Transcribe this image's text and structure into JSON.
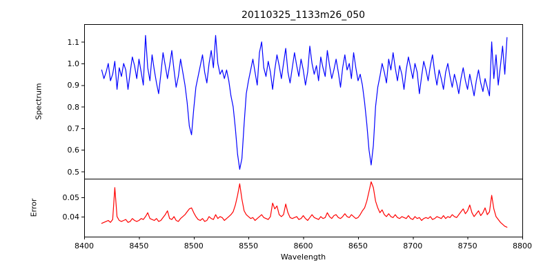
{
  "figure": {
    "background": "#ffffff",
    "axis_color": "#000000"
  },
  "chart_data": [
    {
      "type": "line",
      "name": "spectrum",
      "title": "20110325_1133m26_050",
      "ylabel": "Spectrum",
      "line_color": "#0000ff",
      "xlim": [
        8400,
        8800
      ],
      "ylim": [
        0.4665,
        1.182
      ],
      "y_ticks": [
        "1.1",
        "1.0",
        "0.9",
        "0.8",
        "0.7",
        "0.6",
        "0.5"
      ],
      "grid": false,
      "legend": "none",
      "x_start": 8416,
      "x_step": 2,
      "absorption_features": [
        {
          "wavelength": 8498,
          "depth": 0.67
        },
        {
          "wavelength": 8542,
          "depth": 0.51
        },
        {
          "wavelength": 8662,
          "depth": 0.53
        }
      ],
      "values": [
        0.97,
        0.93,
        0.96,
        1.0,
        0.92,
        0.95,
        1.01,
        0.88,
        0.98,
        0.94,
        1.0,
        0.97,
        0.88,
        0.96,
        1.03,
        0.99,
        0.93,
        1.02,
        0.96,
        0.9,
        1.13,
        0.98,
        0.92,
        1.04,
        0.97,
        0.91,
        0.86,
        0.95,
        1.05,
        0.99,
        0.93,
        0.99,
        1.06,
        0.97,
        0.89,
        0.94,
        1.02,
        0.96,
        0.9,
        0.82,
        0.71,
        0.67,
        0.79,
        0.89,
        0.94,
        0.99,
        1.04,
        0.96,
        0.91,
        1.0,
        1.06,
        0.98,
        1.13,
        1.0,
        0.95,
        0.97,
        0.93,
        0.97,
        0.92,
        0.85,
        0.8,
        0.7,
        0.58,
        0.51,
        0.56,
        0.72,
        0.86,
        0.92,
        0.97,
        1.02,
        0.96,
        0.9,
        1.05,
        1.1,
        0.98,
        0.94,
        1.01,
        0.96,
        0.88,
        0.97,
        1.04,
        0.99,
        0.93,
        1.0,
        1.07,
        0.96,
        0.91,
        0.98,
        1.05,
        0.99,
        0.94,
        1.02,
        0.97,
        0.9,
        0.96,
        1.08,
        1.0,
        0.95,
        0.99,
        0.92,
        1.03,
        0.98,
        0.94,
        1.06,
        0.99,
        0.93,
        0.97,
        1.02,
        0.96,
        0.89,
        0.98,
        1.04,
        0.97,
        1.0,
        0.93,
        1.05,
        0.98,
        0.92,
        0.95,
        0.9,
        0.82,
        0.72,
        0.6,
        0.53,
        0.62,
        0.8,
        0.89,
        0.94,
        1.0,
        0.96,
        0.91,
        1.02,
        0.97,
        1.05,
        0.98,
        0.92,
        0.99,
        0.95,
        0.88,
        0.97,
        1.03,
        0.98,
        0.93,
        1.0,
        0.96,
        0.86,
        0.94,
        1.01,
        0.97,
        0.92,
        0.99,
        1.04,
        0.96,
        0.9,
        0.97,
        0.93,
        0.88,
        0.96,
        1.0,
        0.94,
        0.89,
        0.95,
        0.91,
        0.86,
        0.93,
        0.98,
        0.92,
        0.88,
        0.95,
        0.9,
        0.85,
        0.92,
        0.97,
        0.91,
        0.87,
        0.93,
        0.89,
        0.85,
        1.1,
        0.93,
        1.04,
        0.9,
        0.99,
        1.08,
        0.95,
        1.12
      ]
    },
    {
      "type": "line",
      "name": "error",
      "xlabel": "Wavelength",
      "ylabel": "Error",
      "line_color": "#ff0000",
      "xlim": [
        8400,
        8800
      ],
      "ylim": [
        0.0296,
        0.0596
      ],
      "x_ticks": [
        "8400",
        "8450",
        "8500",
        "8550",
        "8600",
        "8650",
        "8700",
        "8750",
        "8800"
      ],
      "y_ticks": [
        "0.05",
        "0.04"
      ],
      "grid": false,
      "legend": "none",
      "x_start": 8416,
      "x_step": 2,
      "values": [
        0.0365,
        0.037,
        0.0375,
        0.038,
        0.037,
        0.0385,
        0.055,
        0.04,
        0.038,
        0.0375,
        0.038,
        0.0385,
        0.037,
        0.0375,
        0.039,
        0.038,
        0.0375,
        0.038,
        0.039,
        0.0385,
        0.04,
        0.042,
        0.039,
        0.0385,
        0.038,
        0.039,
        0.0375,
        0.038,
        0.0395,
        0.041,
        0.043,
        0.039,
        0.0385,
        0.04,
        0.038,
        0.0375,
        0.039,
        0.04,
        0.041,
        0.0425,
        0.044,
        0.0445,
        0.042,
        0.04,
        0.0385,
        0.038,
        0.039,
        0.0375,
        0.038,
        0.04,
        0.039,
        0.0385,
        0.041,
        0.039,
        0.04,
        0.0395,
        0.038,
        0.039,
        0.04,
        0.041,
        0.0425,
        0.046,
        0.051,
        0.057,
        0.049,
        0.043,
        0.041,
        0.04,
        0.039,
        0.0395,
        0.038,
        0.039,
        0.04,
        0.041,
        0.0395,
        0.039,
        0.0385,
        0.04,
        0.047,
        0.044,
        0.0455,
        0.041,
        0.04,
        0.041,
        0.0465,
        0.042,
        0.0395,
        0.039,
        0.0395,
        0.04,
        0.0385,
        0.039,
        0.0405,
        0.039,
        0.038,
        0.0395,
        0.041,
        0.0395,
        0.039,
        0.0385,
        0.04,
        0.039,
        0.0395,
        0.042,
        0.04,
        0.039,
        0.0405,
        0.041,
        0.0395,
        0.039,
        0.04,
        0.0415,
        0.04,
        0.0395,
        0.041,
        0.04,
        0.039,
        0.0395,
        0.041,
        0.043,
        0.0445,
        0.048,
        0.053,
        0.058,
        0.055,
        0.048,
        0.0445,
        0.042,
        0.0435,
        0.041,
        0.04,
        0.0415,
        0.04,
        0.0395,
        0.041,
        0.0395,
        0.039,
        0.04,
        0.0395,
        0.039,
        0.0405,
        0.039,
        0.0385,
        0.04,
        0.039,
        0.0395,
        0.038,
        0.039,
        0.0395,
        0.039,
        0.04,
        0.0385,
        0.039,
        0.04,
        0.0395,
        0.039,
        0.0405,
        0.039,
        0.04,
        0.0395,
        0.041,
        0.04,
        0.0395,
        0.041,
        0.0425,
        0.044,
        0.0415,
        0.043,
        0.046,
        0.042,
        0.04,
        0.0415,
        0.043,
        0.0405,
        0.042,
        0.0445,
        0.041,
        0.0425,
        0.051,
        0.044,
        0.04,
        0.0385,
        0.037,
        0.036,
        0.035,
        0.0345
      ]
    }
  ]
}
